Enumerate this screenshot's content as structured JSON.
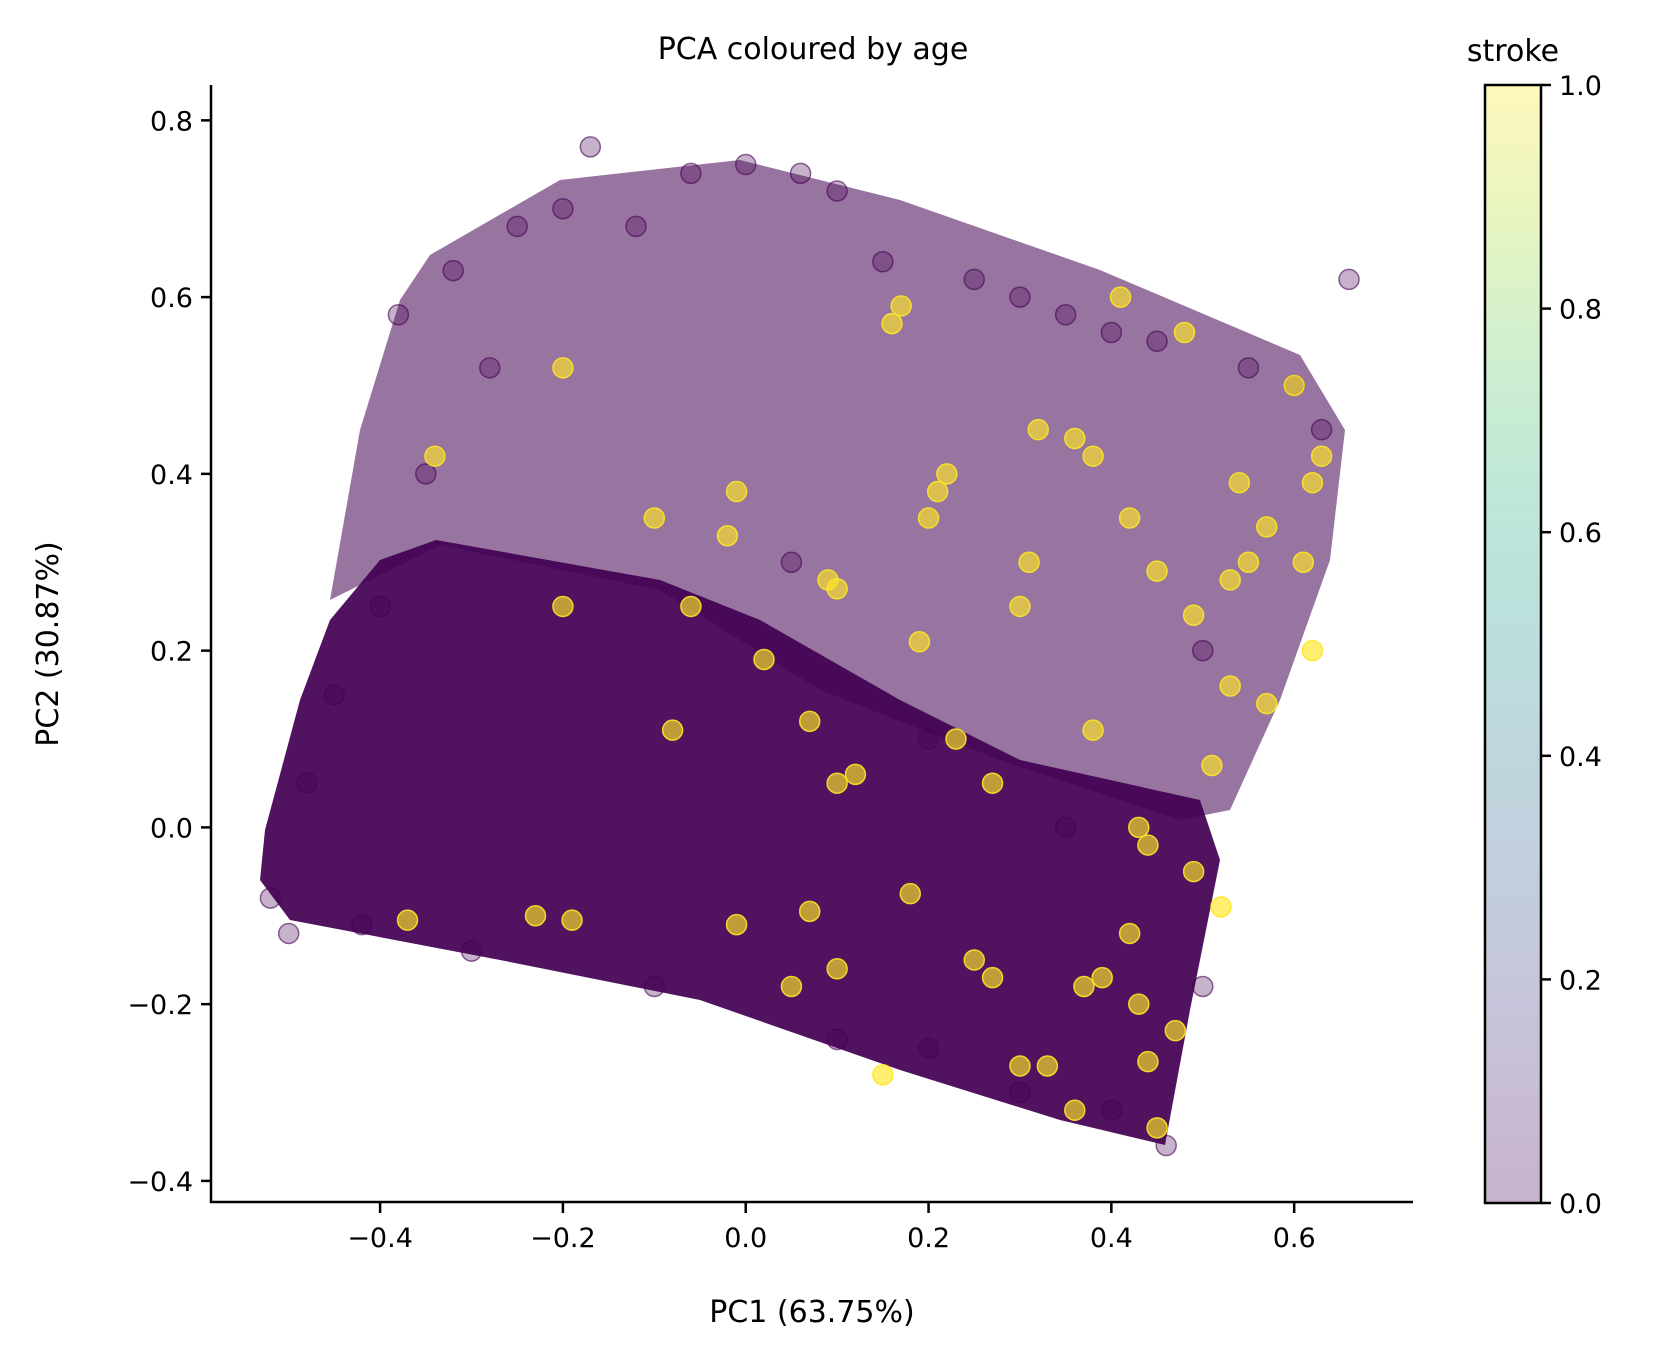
{
  "chart_data": {
    "type": "scatter",
    "title": "PCA coloured by age",
    "xlabel": "PC1 (63.75%)",
    "ylabel": "PC2 (30.87%)",
    "xlim": [
      -0.585,
      0.73
    ],
    "ylim": [
      -0.425,
      0.84
    ],
    "x_ticks": [
      -0.4,
      -0.2,
      0.0,
      0.2,
      0.4,
      0.6
    ],
    "x_tick_labels": [
      "−0.4",
      "−0.2",
      "0.0",
      "0.2",
      "0.4",
      "0.6"
    ],
    "y_ticks": [
      -0.4,
      -0.2,
      0.0,
      0.2,
      0.4,
      0.6,
      0.8
    ],
    "y_tick_labels": [
      "−0.4",
      "−0.2",
      "0.0",
      "0.2",
      "0.4",
      "0.6",
      "0.8"
    ],
    "grid": false,
    "marker_alpha": 0.3,
    "colormap": "viridis",
    "colorbar": {
      "label": "stroke",
      "range": [
        0.0,
        1.0
      ],
      "ticks": [
        0.0,
        0.2,
        0.4,
        0.6,
        0.8,
        1.0
      ],
      "tick_labels": [
        "0.0",
        "0.2",
        "0.4",
        "0.6",
        "0.8",
        "1.0"
      ]
    },
    "colors": {
      "stroke_0": "#440154",
      "stroke_1": "#fde725"
    },
    "series": [
      {
        "values": [
          [
            -0.52,
            -0.08
          ],
          [
            -0.5,
            -0.12
          ],
          [
            -0.48,
            0.05
          ],
          [
            -0.45,
            0.15
          ],
          [
            -0.42,
            -0.11
          ],
          [
            -0.4,
            0.25
          ],
          [
            -0.38,
            0.58
          ],
          [
            -0.35,
            0.4
          ],
          [
            -0.32,
            0.63
          ],
          [
            -0.3,
            -0.14
          ],
          [
            -0.28,
            0.52
          ],
          [
            -0.25,
            0.68
          ],
          [
            -0.2,
            0.7
          ],
          [
            -0.17,
            0.77
          ],
          [
            -0.12,
            0.68
          ],
          [
            -0.06,
            0.74
          ],
          [
            0.0,
            0.75
          ],
          [
            0.06,
            0.74
          ],
          [
            0.1,
            0.72
          ],
          [
            0.15,
            0.64
          ],
          [
            0.2,
            -0.25
          ],
          [
            0.25,
            0.62
          ],
          [
            0.3,
            0.6
          ],
          [
            0.35,
            0.58
          ],
          [
            0.4,
            0.56
          ],
          [
            0.45,
            0.55
          ],
          [
            0.5,
            -0.18
          ],
          [
            0.55,
            0.52
          ],
          [
            0.6,
            0.5
          ],
          [
            0.63,
            0.45
          ],
          [
            0.66,
            0.62
          ],
          [
            0.46,
            -0.36
          ],
          [
            0.4,
            -0.32
          ],
          [
            0.3,
            -0.3
          ],
          [
            0.1,
            -0.24
          ],
          [
            -0.1,
            -0.18
          ],
          [
            0.05,
            0.3
          ],
          [
            0.2,
            0.1
          ],
          [
            0.35,
            0.0
          ],
          [
            0.5,
            0.2
          ]
        ]
      },
      {
        "values": [
          [
            -0.37,
            -0.105
          ],
          [
            -0.23,
            -0.1
          ],
          [
            -0.19,
            -0.105
          ],
          [
            -0.01,
            -0.11
          ],
          [
            0.07,
            -0.095
          ],
          [
            0.1,
            -0.16
          ],
          [
            0.18,
            -0.075
          ],
          [
            0.25,
            -0.15
          ],
          [
            0.27,
            -0.17
          ],
          [
            0.37,
            -0.18
          ],
          [
            0.39,
            -0.17
          ],
          [
            0.36,
            -0.32
          ],
          [
            0.43,
            -0.2
          ],
          [
            0.44,
            -0.265
          ],
          [
            0.47,
            -0.23
          ],
          [
            0.42,
            -0.12
          ],
          [
            0.49,
            -0.05
          ],
          [
            0.52,
            -0.09
          ],
          [
            0.43,
            0.0
          ],
          [
            0.44,
            -0.02
          ],
          [
            0.27,
            0.05
          ],
          [
            0.12,
            0.06
          ],
          [
            0.07,
            0.12
          ],
          [
            -0.08,
            0.11
          ],
          [
            0.02,
            0.19
          ],
          [
            -0.01,
            0.38
          ],
          [
            -0.02,
            0.33
          ],
          [
            -0.1,
            0.35
          ],
          [
            -0.2,
            0.52
          ],
          [
            -0.34,
            0.42
          ],
          [
            0.09,
            0.28
          ],
          [
            0.1,
            0.27
          ],
          [
            0.21,
            0.38
          ],
          [
            0.22,
            0.4
          ],
          [
            0.2,
            0.35
          ],
          [
            0.3,
            0.25
          ],
          [
            0.31,
            0.3
          ],
          [
            0.38,
            0.42
          ],
          [
            0.42,
            0.35
          ],
          [
            0.45,
            0.29
          ],
          [
            0.49,
            0.24
          ],
          [
            0.53,
            0.28
          ],
          [
            0.55,
            0.3
          ],
          [
            0.57,
            0.34
          ],
          [
            0.61,
            0.3
          ],
          [
            0.62,
            0.39
          ],
          [
            0.63,
            0.42
          ],
          [
            0.62,
            0.2
          ],
          [
            0.57,
            0.14
          ],
          [
            0.6,
            0.5
          ],
          [
            0.48,
            0.56
          ],
          [
            0.41,
            0.6
          ],
          [
            0.17,
            0.59
          ],
          [
            0.16,
            0.57
          ],
          [
            -0.2,
            0.25
          ],
          [
            -0.06,
            0.25
          ],
          [
            0.36,
            0.44
          ],
          [
            0.32,
            0.45
          ],
          [
            0.54,
            0.39
          ],
          [
            0.53,
            0.16
          ],
          [
            0.51,
            0.07
          ],
          [
            0.38,
            0.11
          ],
          [
            0.23,
            0.1
          ],
          [
            0.19,
            0.21
          ],
          [
            0.1,
            0.05
          ],
          [
            0.3,
            -0.27
          ],
          [
            0.45,
            -0.34
          ],
          [
            0.33,
            -0.27
          ],
          [
            0.05,
            -0.18
          ],
          [
            0.15,
            -0.28
          ]
        ]
      }
    ]
  }
}
